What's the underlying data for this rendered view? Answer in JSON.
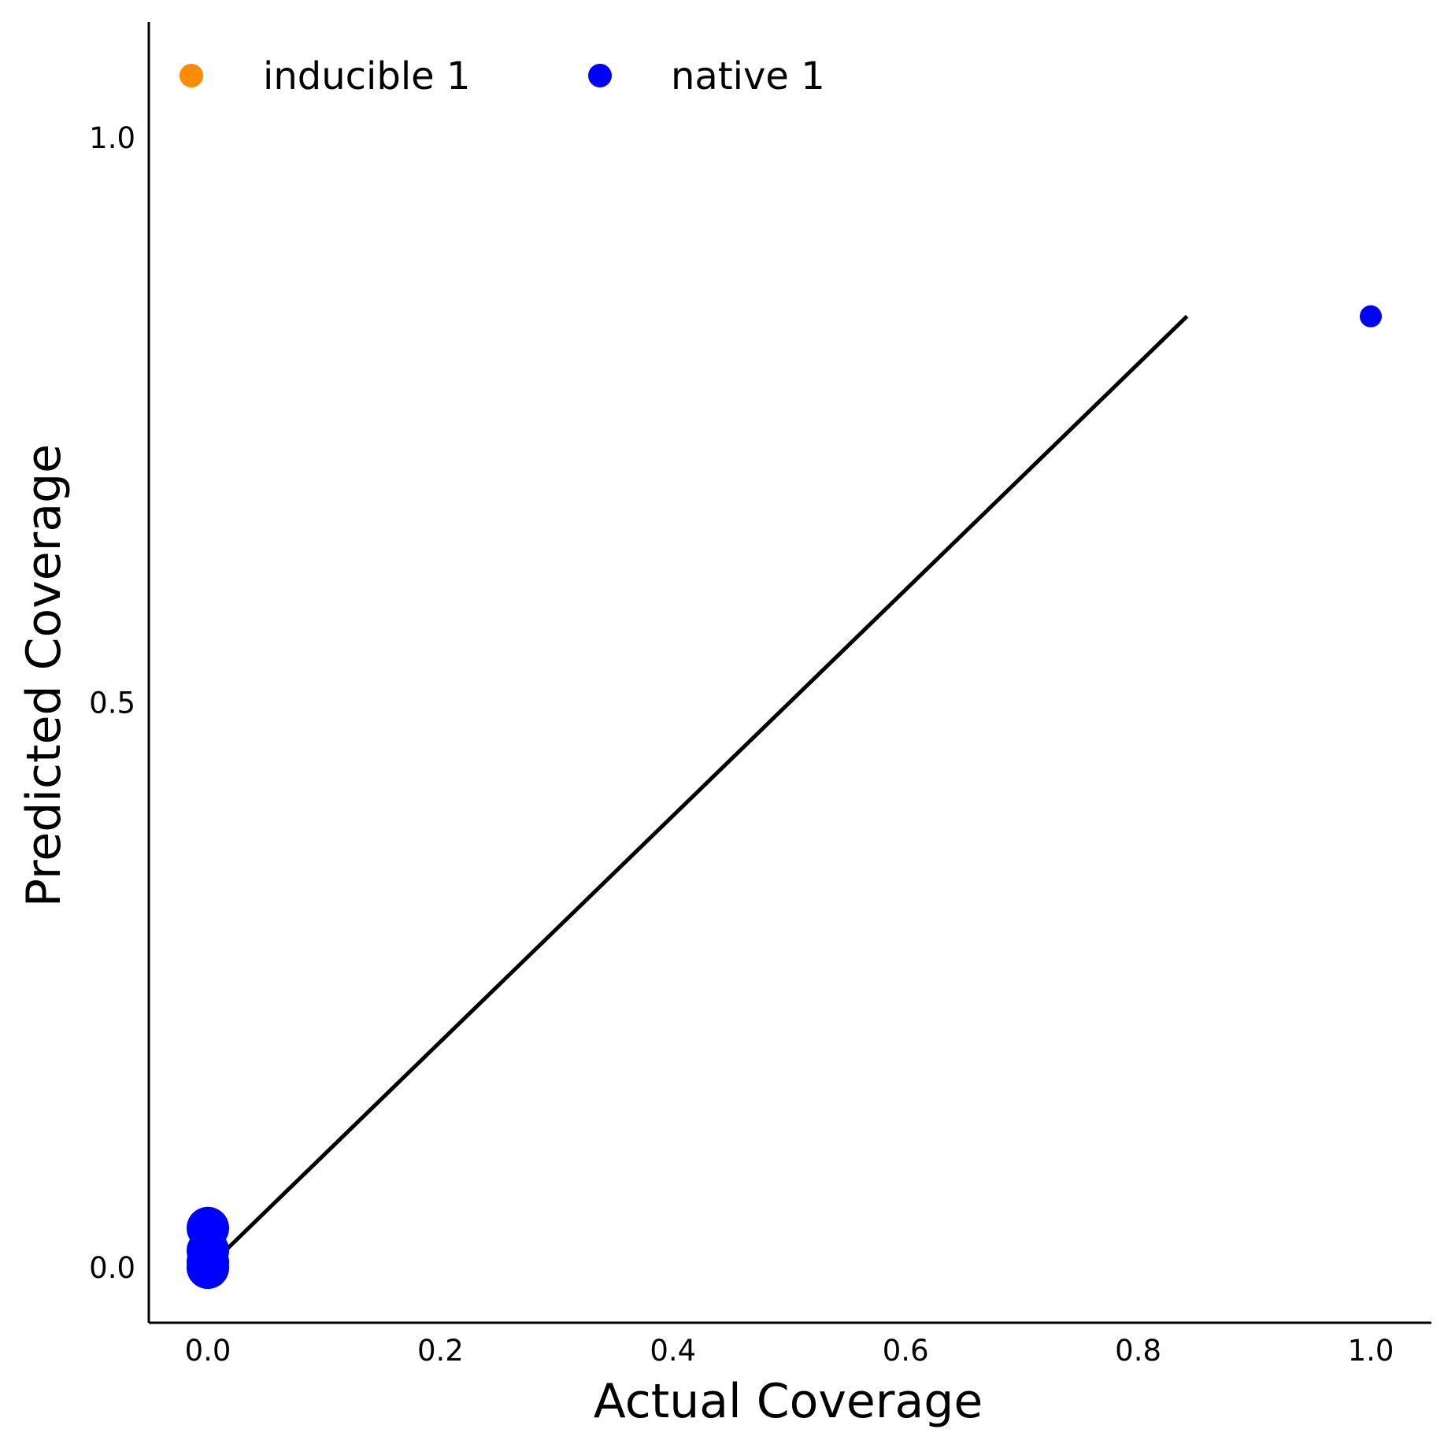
{
  "chart_data": {
    "type": "scatter",
    "title": "",
    "xlabel": "Actual Coverage",
    "ylabel": "Predicted Coverage",
    "xlim": [
      -0.05,
      1.05
    ],
    "ylim": [
      -0.05,
      1.1
    ],
    "grid": false,
    "legend_position": "top-left",
    "x_ticks": [
      {
        "value": 0.0,
        "label": "0.0"
      },
      {
        "value": 0.2,
        "label": "0.2"
      },
      {
        "value": 0.4,
        "label": "0.4"
      },
      {
        "value": 0.6,
        "label": "0.6"
      },
      {
        "value": 0.8,
        "label": "0.8"
      },
      {
        "value": 1.0,
        "label": "1.0"
      }
    ],
    "y_ticks": [
      {
        "value": 0.0,
        "label": "0.0"
      },
      {
        "value": 0.5,
        "label": "0.5"
      },
      {
        "value": 1.0,
        "label": "1.0"
      }
    ],
    "series": [
      {
        "name": "inducible 1",
        "color": "#ff8c00",
        "points": []
      },
      {
        "name": "native 1",
        "color": "#0000ff",
        "points": [
          {
            "x": 0.0,
            "y": 0.0,
            "size": "large"
          },
          {
            "x": 0.0,
            "y": 0.005,
            "size": "large"
          },
          {
            "x": 0.0,
            "y": 0.015,
            "size": "large"
          },
          {
            "x": 0.0,
            "y": 0.035,
            "size": "large"
          },
          {
            "x": 1.0,
            "y": 0.842,
            "size": "small"
          }
        ]
      }
    ],
    "reference_line": {
      "color": "#000000",
      "from": {
        "x": 0.0,
        "y": 0.0
      },
      "to": {
        "x": 0.842,
        "y": 0.842
      }
    }
  }
}
